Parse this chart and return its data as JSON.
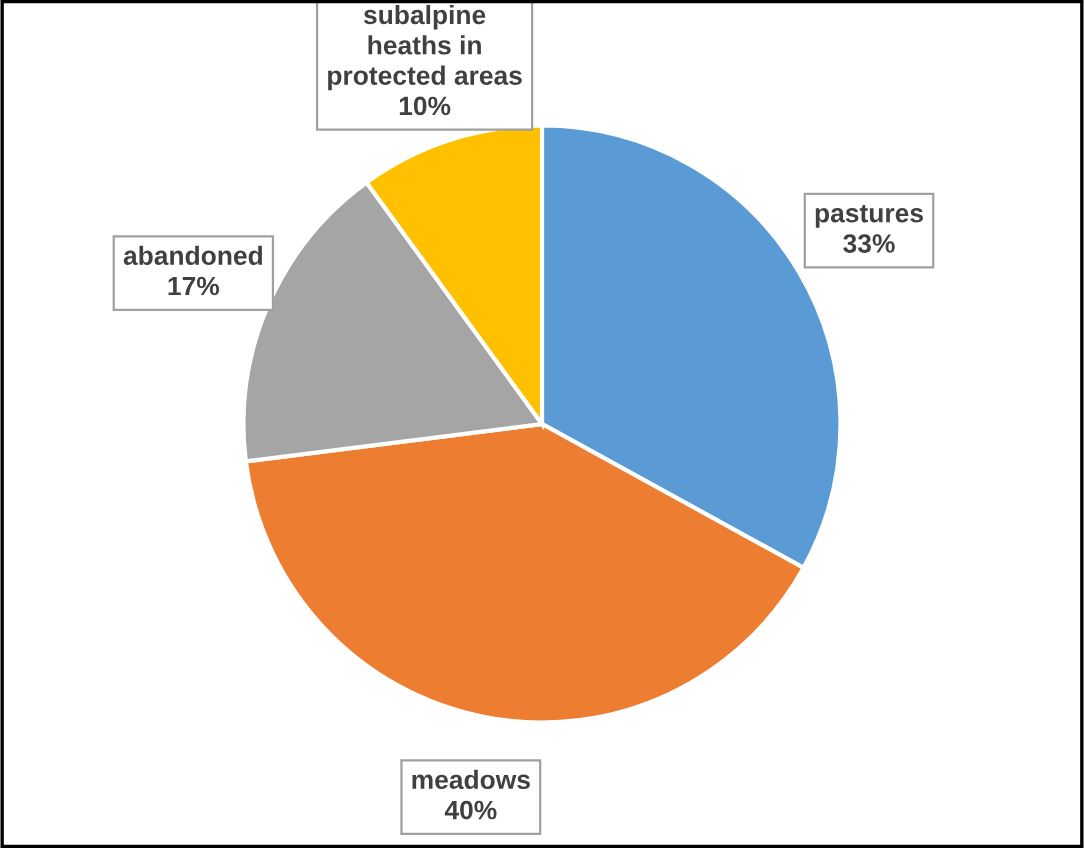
{
  "chart_data": {
    "type": "pie",
    "categories": [
      "pastures",
      "meadows",
      "abandoned",
      "subalpine\nheaths in\nprotected areas"
    ],
    "values": [
      33,
      40,
      17,
      10
    ],
    "colors": [
      "#5b9bd5",
      "#ed7d31",
      "#a5a5a5",
      "#ffc000"
    ],
    "value_labels": [
      "33%",
      "40%",
      "17%",
      "10%"
    ]
  }
}
